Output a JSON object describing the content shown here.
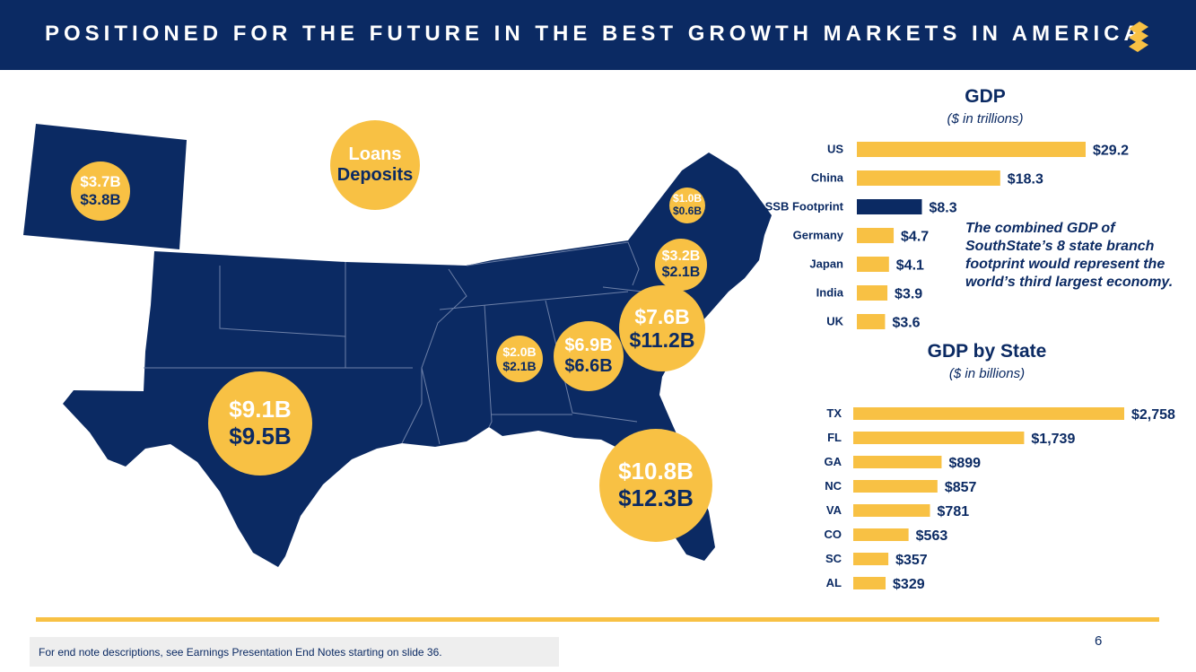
{
  "header": {
    "title": "POSITIONED FOR THE FUTURE IN THE BEST GROWTH MARKETS IN AMERICA"
  },
  "legend": {
    "loans_label": "Loans",
    "deposits_label": "Deposits"
  },
  "map_bubbles": [
    {
      "state": "CO",
      "loans": "$3.7B",
      "deposits": "$3.8B"
    },
    {
      "state": "VA",
      "loans": "$1.0B",
      "deposits": "$0.6B"
    },
    {
      "state": "NC",
      "loans": "$3.2B",
      "deposits": "$2.1B"
    },
    {
      "state": "SC",
      "loans": "$7.6B",
      "deposits": "$11.2B"
    },
    {
      "state": "GA",
      "loans": "$6.9B",
      "deposits": "$6.6B"
    },
    {
      "state": "AL",
      "loans": "$2.0B",
      "deposits": "$2.1B"
    },
    {
      "state": "TX",
      "loans": "$9.1B",
      "deposits": "$9.5B"
    },
    {
      "state": "FL",
      "loans": "$10.8B",
      "deposits": "$12.3B"
    }
  ],
  "note": "The combined GDP of SouthState’s 8 state branch footprint would represent the world’s third largest economy.",
  "colors": {
    "navy": "#0b2a63",
    "gold": "#f8c144"
  },
  "chart_data": [
    {
      "type": "bar",
      "orientation": "horizontal",
      "title": "GDP",
      "subtitle": "($ in trillions)",
      "categories": [
        "US",
        "China",
        "SSB Footprint",
        "Germany",
        "Japan",
        "India",
        "UK"
      ],
      "values": [
        29.2,
        18.3,
        8.3,
        4.7,
        4.1,
        3.9,
        3.6
      ],
      "labels": [
        "$29.2",
        "$18.3",
        "$8.3",
        "$4.7",
        "$4.1",
        "$3.9",
        "$3.6"
      ],
      "highlight": "SSB Footprint"
    },
    {
      "type": "bar",
      "orientation": "horizontal",
      "title": "GDP by State",
      "subtitle": "($ in billions)",
      "categories": [
        "TX",
        "FL",
        "GA",
        "NC",
        "VA",
        "CO",
        "SC",
        "AL"
      ],
      "values": [
        2758,
        1739,
        899,
        857,
        781,
        563,
        357,
        329
      ],
      "labels": [
        "$2,758",
        "$1,739",
        "$899",
        "$857",
        "$781",
        "$563",
        "$357",
        "$329"
      ]
    }
  ],
  "footer": {
    "text": "For end note descriptions, see Earnings Presentation End Notes starting on slide 36.",
    "page": "6"
  }
}
